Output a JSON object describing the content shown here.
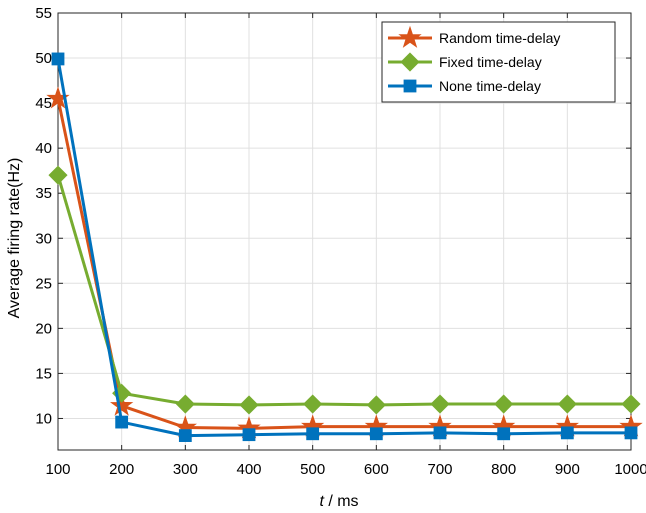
{
  "chart_data": {
    "type": "line",
    "x": [
      100,
      200,
      300,
      400,
      500,
      600,
      700,
      800,
      900,
      1000
    ],
    "xlim": [
      100,
      1000
    ],
    "ylim": [
      6.5,
      55
    ],
    "xticks": [
      "100",
      "200",
      "300",
      "400",
      "500",
      "600",
      "700",
      "800",
      "900",
      "1000"
    ],
    "yticks": [
      "10",
      "15",
      "20",
      "25",
      "30",
      "35",
      "40",
      "45",
      "50",
      "55"
    ],
    "xlabel_italic": "t",
    "xlabel_rest": " / ms",
    "ylabel": "Average firing rate(Hz)",
    "grid": true,
    "legend_position": "top-right",
    "series": [
      {
        "name": "Random time-delay",
        "color": "#d95319",
        "marker": "star",
        "values": [
          45.5,
          11.4,
          9.0,
          8.9,
          9.1,
          9.1,
          9.1,
          9.1,
          9.1,
          9.1
        ]
      },
      {
        "name": "Fixed time-delay",
        "color": "#77ac30",
        "marker": "diamond",
        "values": [
          37.0,
          12.8,
          11.6,
          11.5,
          11.6,
          11.5,
          11.6,
          11.6,
          11.6,
          11.6
        ]
      },
      {
        "name": "None time-delay",
        "color": "#0072bd",
        "marker": "square",
        "values": [
          49.9,
          9.6,
          8.1,
          8.2,
          8.3,
          8.3,
          8.4,
          8.3,
          8.4,
          8.4
        ]
      }
    ]
  }
}
